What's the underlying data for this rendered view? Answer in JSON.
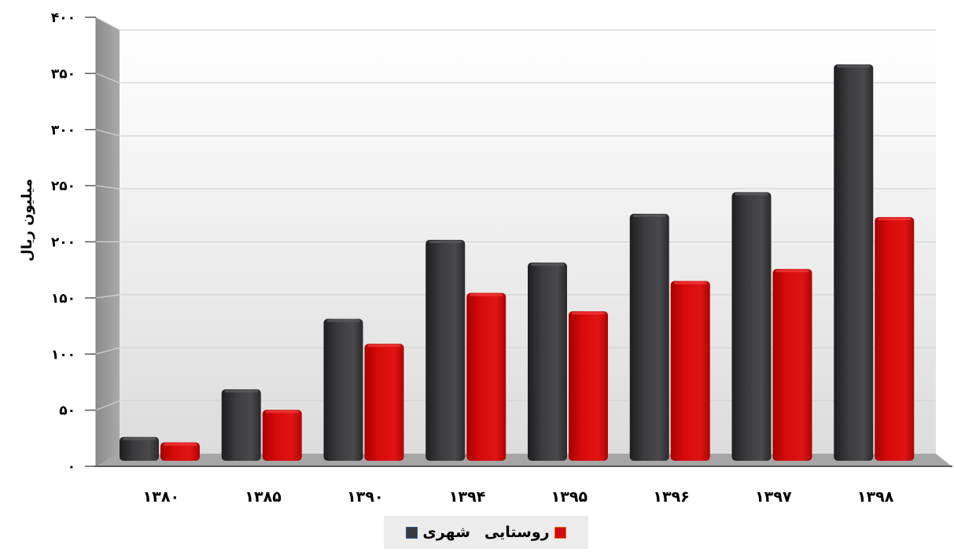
{
  "chart_data": {
    "type": "bar",
    "title": "",
    "xlabel": "",
    "ylabel": "میلیون ریال",
    "categories": [
      "۱۳۸۰",
      "۱۳۸۵",
      "۱۳۹۰",
      "۱۳۹۴",
      "۱۳۹۵",
      "۱۳۹۶",
      "۱۳۹۷",
      "۱۳۹۸"
    ],
    "yticks": [
      "۰",
      "۵۰",
      "۱۰۰",
      "۱۵۰",
      "۲۰۰",
      "۲۵۰",
      "۳۰۰",
      "۳۵۰",
      "۴۰۰"
    ],
    "ylim": [
      0,
      400
    ],
    "grid": true,
    "legend_position": "bottom",
    "series": [
      {
        "name": "شهری",
        "color": "#3a3a3c",
        "values": [
          22,
          66,
          131,
          204,
          183,
          228,
          248,
          366
        ]
      },
      {
        "name": "روستایی",
        "color": "#d20a0a",
        "values": [
          17,
          47,
          108,
          155,
          138,
          166,
          177,
          225
        ]
      }
    ]
  }
}
